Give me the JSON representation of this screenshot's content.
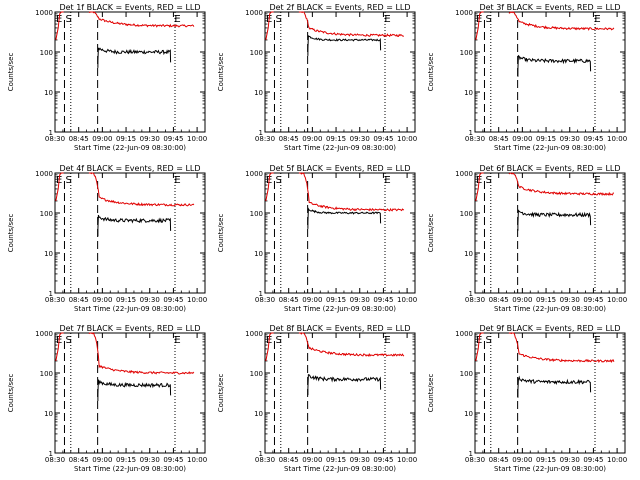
{
  "chart_data": {
    "type": "line",
    "layout": "3x3 grid",
    "xlabel": "Start Time (22-Jun-09 08:30:00)",
    "ylabel": "Counts/sec",
    "yscale": "log",
    "ylim": [
      1,
      1000
    ],
    "ytick_labels": [
      "1",
      "10",
      "100",
      "1000"
    ],
    "xlim_minutes": [
      0,
      95
    ],
    "xtick_labels": [
      "08:30",
      "08:45",
      "09:00",
      "09:15",
      "09:30",
      "09:45",
      "10:00"
    ],
    "event_markers": [
      {
        "label": "E",
        "minute": 0
      },
      {
        "label": "S",
        "minute": 6
      },
      {
        "label": "E",
        "minute": 75
      }
    ],
    "dashed_lines_minutes": [
      6,
      27
    ],
    "dotted_lines_minutes": [
      10,
      76
    ],
    "legend_text": "BLACK = Events, RED = LLD",
    "colors": {
      "events": "#000000",
      "lld": "#e00000"
    },
    "panels": [
      {
        "title": "Det 1f  BLACK = Events, RED = LLD",
        "lld_level": 450,
        "events_level": 100,
        "overlap": false
      },
      {
        "title": "Det 2f  BLACK = Events, RED = LLD",
        "lld_level": 260,
        "events_level": 200,
        "overlap": true
      },
      {
        "title": "Det 3f  BLACK = Events, RED = LLD",
        "lld_level": 380,
        "events_level": 60,
        "overlap": false
      },
      {
        "title": "Det 4f  BLACK = Events, RED = LLD",
        "lld_level": 160,
        "events_level": 65,
        "overlap": false
      },
      {
        "title": "Det 5f  BLACK = Events, RED = LLD",
        "lld_level": 120,
        "events_level": 100,
        "overlap": true
      },
      {
        "title": "Det 6f  BLACK = Events, RED = LLD",
        "lld_level": 300,
        "events_level": 90,
        "overlap": false
      },
      {
        "title": "Det 7f  BLACK = Events, RED = LLD",
        "lld_level": 100,
        "events_level": 50,
        "overlap": false
      },
      {
        "title": "Det 8f  BLACK = Events, RED = LLD",
        "lld_level": 280,
        "events_level": 70,
        "overlap": false
      },
      {
        "title": "Det 9f  BLACK = Events, RED = LLD",
        "lld_level": 200,
        "events_level": 60,
        "overlap": false
      }
    ]
  }
}
